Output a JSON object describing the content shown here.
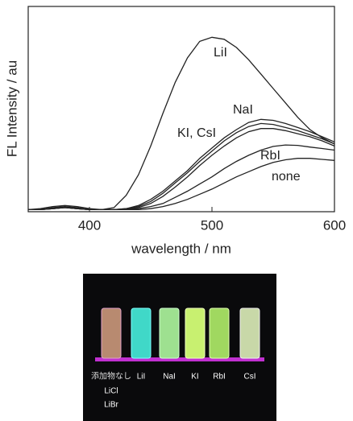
{
  "chart_data": {
    "type": "line",
    "x_label": "wavelength / nm",
    "y_label": "FL Intensity / au",
    "x": [
      350,
      360,
      370,
      380,
      390,
      400,
      410,
      420,
      430,
      440,
      450,
      460,
      470,
      480,
      490,
      500,
      510,
      520,
      530,
      540,
      550,
      560,
      570,
      580,
      590,
      600
    ],
    "xlim": [
      350,
      600
    ],
    "ylim": [
      0,
      100
    ],
    "xticks": [
      400,
      500,
      600
    ],
    "series": [
      {
        "name": "LiI",
        "color": "#222222",
        "values": [
          1,
          1.5,
          2.5,
          3,
          2.5,
          1.5,
          1,
          2,
          8,
          18,
          32,
          48,
          63,
          75,
          83,
          85,
          84,
          80,
          74,
          67,
          60,
          53,
          46,
          40,
          36,
          33
        ]
      },
      {
        "name": "NaI",
        "color": "#222222",
        "values": [
          1,
          1,
          2,
          2.5,
          2,
          1,
          1,
          1,
          1.5,
          3,
          6,
          10,
          15,
          20,
          26,
          31,
          36,
          40,
          43.5,
          45,
          44.5,
          43,
          41,
          39,
          36.5,
          34
        ]
      },
      {
        "name": "KI, CsI",
        "color": "#222222",
        "values": [
          1,
          1,
          1.5,
          2,
          1.5,
          1,
          1,
          1,
          1.5,
          2.5,
          5,
          9,
          14,
          19,
          24.5,
          29.5,
          34.5,
          38.5,
          41.5,
          43,
          42.5,
          41,
          39.5,
          37.5,
          35.5,
          33
        ]
      },
      {
        "color": "#222222",
        "values": [
          1,
          1,
          1.5,
          2,
          1.5,
          1,
          1,
          1,
          1.2,
          2,
          4,
          7.5,
          12,
          17,
          22.5,
          27.5,
          32,
          36,
          39,
          40.5,
          40.5,
          39.5,
          38,
          36.5,
          34.5,
          32
        ]
      },
      {
        "name": "RbI",
        "color": "#222222",
        "values": [
          1,
          1,
          1.5,
          2,
          1.5,
          1,
          1,
          1,
          1,
          1.5,
          2.5,
          4,
          7,
          10,
          13.5,
          17,
          21,
          24.5,
          27.5,
          30,
          31.8,
          32.5,
          32.3,
          31.5,
          30.8,
          30
        ]
      },
      {
        "name": "none",
        "color": "#222222",
        "values": [
          1,
          1,
          1.5,
          2,
          1.5,
          1,
          1,
          1,
          1,
          1,
          1.5,
          2.5,
          4,
          6,
          8.5,
          11,
          14,
          17,
          19.5,
          22,
          24,
          25.3,
          26,
          26,
          25.5,
          25
        ]
      }
    ]
  },
  "photo": {
    "labels": [
      "添加物なし",
      "LiCl",
      "LiBr",
      "LiI",
      "NaI",
      "KI",
      "RbI",
      "CsI"
    ]
  }
}
